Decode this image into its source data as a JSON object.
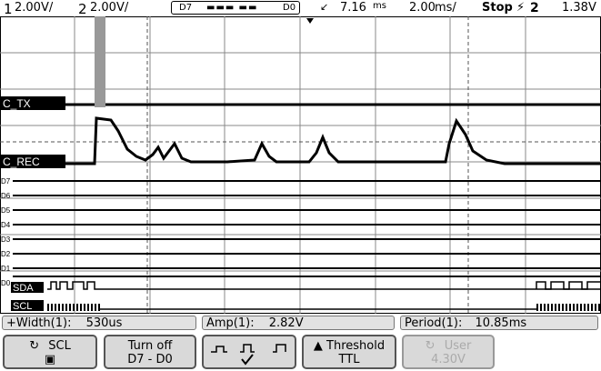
{
  "status": {
    "ch1_num": "1",
    "ch1_scale": "2.00V/",
    "ch2_num": "2",
    "ch2_scale": "2.00V/",
    "digital_left": "D7",
    "digital_right": "D0",
    "trigger_delay": "7.16",
    "trigger_delay_unit": "ms",
    "timebase": "2.00",
    "timebase_unit": "ms/",
    "run_state": "Stop",
    "trigger_source": "2",
    "trigger_level": "1.38V"
  },
  "channels": {
    "ch2_label": "C_TX",
    "ch1_label": "C_REC",
    "digital": [
      "D7",
      "D6",
      "D5",
      "D4",
      "D3",
      "D2",
      "D1",
      "D0"
    ],
    "bus_sda": "SDA",
    "bus_scl": "SCL"
  },
  "measurements": [
    {
      "label": "+Width(1):",
      "value": "530us"
    },
    {
      "label": "Amp(1):",
      "value": "2.82V"
    },
    {
      "label": "Period(1):",
      "value": "10.85ms"
    }
  ],
  "softkeys": {
    "source_label": "SCL",
    "turn_off_line1": "Turn off",
    "turn_off_line2": "D7 - D0",
    "threshold_line1": "Threshold",
    "threshold_line2": "TTL",
    "user_line1": "User",
    "user_line2": "4.30V"
  },
  "colors": {
    "trace": "#000000",
    "grid": "#888888",
    "panel": "#e2e2e2"
  }
}
